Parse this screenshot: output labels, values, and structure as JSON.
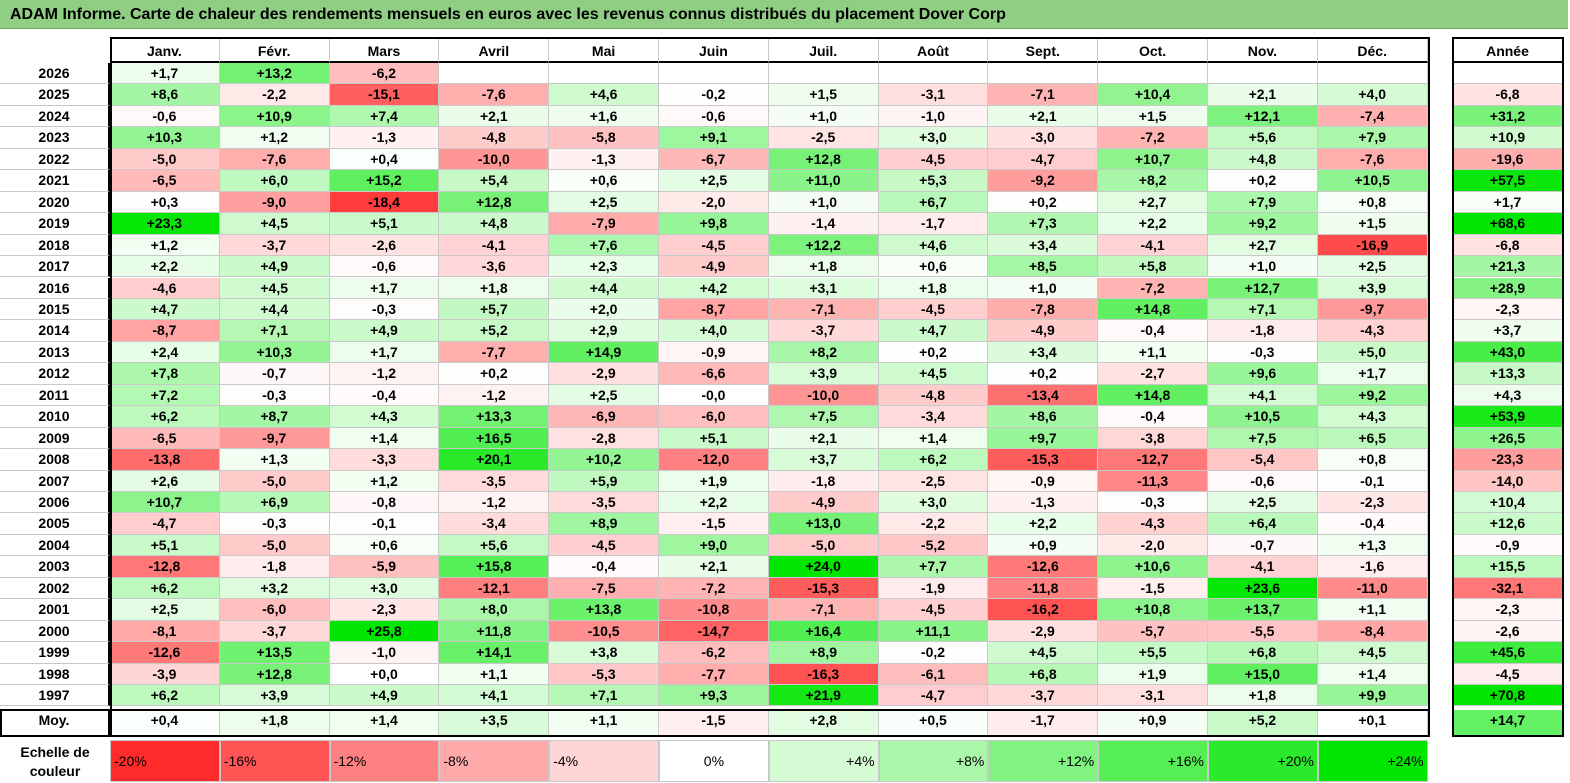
{
  "title": "ADAM Informe. Carte de chaleur des rendements mensuels en euros avec les revenus connus distribués du placement Dover Corp",
  "chart_data": {
    "type": "heatmap",
    "title": "ADAM Informe. Carte de chaleur des rendements mensuels en euros avec les revenus connus distribués du placement Dover Corp",
    "columns": [
      "Janv.",
      "Févr.",
      "Mars",
      "Avril",
      "Mai",
      "Juin",
      "Juil.",
      "Août",
      "Sept.",
      "Oct.",
      "Nov.",
      "Déc."
    ],
    "year_label": "Année",
    "avg_label": "Moy.",
    "rows": [
      {
        "year": "2026",
        "values": [
          "+1,7",
          "+13,2",
          "-6,2",
          "",
          "",
          "",
          "",
          "",
          "",
          "",
          "",
          ""
        ],
        "annual": ""
      },
      {
        "year": "2025",
        "values": [
          "+8,6",
          "-2,2",
          "-15,1",
          "-7,6",
          "+4,6",
          "-0,2",
          "+1,5",
          "-3,1",
          "-7,1",
          "+10,4",
          "+2,1",
          "+4,0"
        ],
        "annual": "-6,8"
      },
      {
        "year": "2024",
        "values": [
          "-0,6",
          "+10,9",
          "+7,4",
          "+2,1",
          "+1,6",
          "-0,6",
          "+1,0",
          "-1,0",
          "+2,1",
          "+1,5",
          "+12,1",
          "-7,4"
        ],
        "annual": "+31,2"
      },
      {
        "year": "2023",
        "values": [
          "+10,3",
          "+1,2",
          "-1,3",
          "-4,8",
          "-5,8",
          "+9,1",
          "-2,5",
          "+3,0",
          "-3,0",
          "-7,2",
          "+5,6",
          "+7,9"
        ],
        "annual": "+10,9"
      },
      {
        "year": "2022",
        "values": [
          "-5,0",
          "-7,6",
          "+0,4",
          "-10,0",
          "-1,3",
          "-6,7",
          "+12,8",
          "-4,5",
          "-4,7",
          "+10,7",
          "+4,8",
          "-7,6"
        ],
        "annual": "-19,6"
      },
      {
        "year": "2021",
        "values": [
          "-6,5",
          "+6,0",
          "+15,2",
          "+5,4",
          "+0,6",
          "+2,5",
          "+11,0",
          "+5,3",
          "-9,2",
          "+8,2",
          "+0,2",
          "+10,5"
        ],
        "annual": "+57,5"
      },
      {
        "year": "2020",
        "values": [
          "+0,3",
          "-9,0",
          "-18,4",
          "+12,8",
          "+2,5",
          "-2,0",
          "+1,0",
          "+6,7",
          "+0,2",
          "+2,7",
          "+7,9",
          "+0,8"
        ],
        "annual": "+1,7"
      },
      {
        "year": "2019",
        "values": [
          "+23,3",
          "+4,5",
          "+5,1",
          "+4,8",
          "-7,9",
          "+9,8",
          "-1,4",
          "-1,7",
          "+7,3",
          "+2,2",
          "+9,2",
          "+1,5"
        ],
        "annual": "+68,6"
      },
      {
        "year": "2018",
        "values": [
          "+1,2",
          "-3,7",
          "-2,6",
          "-4,1",
          "+7,6",
          "-4,5",
          "+12,2",
          "+4,6",
          "+3,4",
          "-4,1",
          "+2,7",
          "-16,9"
        ],
        "annual": "-6,8"
      },
      {
        "year": "2017",
        "values": [
          "+2,2",
          "+4,9",
          "-0,6",
          "-3,6",
          "+2,3",
          "-4,9",
          "+1,8",
          "+0,6",
          "+8,5",
          "+5,8",
          "+1,0",
          "+2,5"
        ],
        "annual": "+21,3"
      },
      {
        "year": "2016",
        "values": [
          "-4,6",
          "+4,5",
          "+1,7",
          "+1,8",
          "+4,4",
          "+4,2",
          "+3,1",
          "+1,8",
          "+1,0",
          "-7,2",
          "+12,7",
          "+3,9"
        ],
        "annual": "+28,9"
      },
      {
        "year": "2015",
        "values": [
          "+4,7",
          "+4,4",
          "-0,3",
          "+5,7",
          "+2,0",
          "-8,7",
          "-7,1",
          "-4,5",
          "-7,8",
          "+14,8",
          "+7,1",
          "-9,7"
        ],
        "annual": "-2,3"
      },
      {
        "year": "2014",
        "values": [
          "-8,7",
          "+7,1",
          "+4,9",
          "+5,2",
          "+2,9",
          "+4,0",
          "-3,7",
          "+4,7",
          "-4,9",
          "-0,4",
          "-1,8",
          "-4,3"
        ],
        "annual": "+3,7"
      },
      {
        "year": "2013",
        "values": [
          "+2,4",
          "+10,3",
          "+1,7",
          "-7,7",
          "+14,9",
          "-0,9",
          "+8,2",
          "+0,2",
          "+3,4",
          "+1,1",
          "-0,3",
          "+5,0"
        ],
        "annual": "+43,0"
      },
      {
        "year": "2012",
        "values": [
          "+7,8",
          "-0,7",
          "-1,2",
          "+0,2",
          "-2,9",
          "-6,6",
          "+3,9",
          "+4,5",
          "+0,2",
          "-2,7",
          "+9,6",
          "+1,7"
        ],
        "annual": "+13,3"
      },
      {
        "year": "2011",
        "values": [
          "+7,2",
          "-0,3",
          "-0,4",
          "-1,2",
          "+2,5",
          "-0,0",
          "-10,0",
          "-4,8",
          "-13,4",
          "+14,8",
          "+4,1",
          "+9,2"
        ],
        "annual": "+4,3"
      },
      {
        "year": "2010",
        "values": [
          "+6,2",
          "+8,7",
          "+4,3",
          "+13,3",
          "-6,9",
          "-6,0",
          "+7,5",
          "-3,4",
          "+8,6",
          "-0,4",
          "+10,5",
          "+4,3"
        ],
        "annual": "+53,9"
      },
      {
        "year": "2009",
        "values": [
          "-6,5",
          "-9,7",
          "+1,4",
          "+16,5",
          "-2,8",
          "+5,1",
          "+2,1",
          "+1,4",
          "+9,7",
          "-3,8",
          "+7,5",
          "+6,5"
        ],
        "annual": "+26,5"
      },
      {
        "year": "2008",
        "values": [
          "-13,8",
          "+1,3",
          "-3,3",
          "+20,1",
          "+10,2",
          "-12,0",
          "+3,7",
          "+6,2",
          "-15,3",
          "-12,7",
          "-5,4",
          "+0,8"
        ],
        "annual": "-23,3"
      },
      {
        "year": "2007",
        "values": [
          "+2,6",
          "-5,0",
          "+1,2",
          "-3,5",
          "+5,9",
          "+1,9",
          "-1,8",
          "-2,5",
          "-0,9",
          "-11,3",
          "-0,6",
          "-0,1"
        ],
        "annual": "-14,0"
      },
      {
        "year": "2006",
        "values": [
          "+10,7",
          "+6,9",
          "-0,8",
          "-1,2",
          "-3,5",
          "+2,2",
          "-4,9",
          "+3,0",
          "-1,3",
          "-0,3",
          "+2,5",
          "-2,3"
        ],
        "annual": "+10,4"
      },
      {
        "year": "2005",
        "values": [
          "-4,7",
          "-0,3",
          "-0,1",
          "-3,4",
          "+8,9",
          "-1,5",
          "+13,0",
          "-2,2",
          "+2,2",
          "-4,3",
          "+6,4",
          "-0,4"
        ],
        "annual": "+12,6"
      },
      {
        "year": "2004",
        "values": [
          "+5,1",
          "-5,0",
          "+0,6",
          "+5,6",
          "-4,5",
          "+9,0",
          "-5,0",
          "-5,2",
          "+0,9",
          "-2,0",
          "-0,7",
          "+1,3"
        ],
        "annual": "-0,9"
      },
      {
        "year": "2003",
        "values": [
          "-12,8",
          "-1,8",
          "-5,9",
          "+15,8",
          "-0,4",
          "+2,1",
          "+24,0",
          "+7,7",
          "-12,6",
          "+10,6",
          "-4,1",
          "-1,6"
        ],
        "annual": "+15,5"
      },
      {
        "year": "2002",
        "values": [
          "+6,2",
          "+3,2",
          "+3,0",
          "-12,1",
          "-7,5",
          "-7,2",
          "-15,3",
          "-1,9",
          "-11,8",
          "-1,5",
          "+23,6",
          "-11,0"
        ],
        "annual": "-32,1"
      },
      {
        "year": "2001",
        "values": [
          "+2,5",
          "-6,0",
          "-2,3",
          "+8,0",
          "+13,8",
          "-10,8",
          "-7,1",
          "-4,5",
          "-16,2",
          "+10,8",
          "+13,7",
          "+1,1"
        ],
        "annual": "-2,3"
      },
      {
        "year": "2000",
        "values": [
          "-8,1",
          "-3,7",
          "+25,8",
          "+11,8",
          "-10,5",
          "-14,7",
          "+16,4",
          "+11,1",
          "-2,9",
          "-5,7",
          "-5,5",
          "-8,4"
        ],
        "annual": "-2,6"
      },
      {
        "year": "1999",
        "values": [
          "-12,6",
          "+13,5",
          "-1,0",
          "+14,1",
          "+3,8",
          "-6,2",
          "+8,9",
          "-0,2",
          "+4,5",
          "+5,5",
          "+6,8",
          "+4,5"
        ],
        "annual": "+45,6"
      },
      {
        "year": "1998",
        "values": [
          "-3,9",
          "+12,8",
          "+0,0",
          "+1,1",
          "-5,3",
          "-7,7",
          "-16,3",
          "-6,1",
          "+6,8",
          "+1,9",
          "+15,0",
          "+1,4"
        ],
        "annual": "-4,5"
      },
      {
        "year": "1997",
        "values": [
          "+6,2",
          "+3,9",
          "+4,9",
          "+4,1",
          "+7,1",
          "+9,3",
          "+21,9",
          "-4,7",
          "-3,7",
          "-3,1",
          "+1,8",
          "+9,9"
        ],
        "annual": "+70,8"
      }
    ],
    "average": {
      "values": [
        "+0,4",
        "+1,8",
        "+1,4",
        "+3,5",
        "+1,1",
        "-1,5",
        "+2,8",
        "+0,5",
        "-1,7",
        "+0,9",
        "+5,2",
        "+0,1"
      ],
      "annual": "+14,7"
    },
    "color_scale": {
      "label_line1": "Echelle de",
      "label_line2": "couleur",
      "steps": [
        "-20%",
        "-16%",
        "-12%",
        "-8%",
        "-4%",
        "0%",
        "+4%",
        "+8%",
        "+12%",
        "+16%",
        "+20%",
        "+24%"
      ],
      "step_values": [
        -20,
        -16,
        -12,
        -8,
        -4,
        0,
        4,
        8,
        12,
        16,
        20,
        24
      ]
    },
    "colors": {
      "negative": "#ff0000",
      "zero": "#ffffff",
      "positive": "#00e600",
      "title_bg": "#8fce83"
    }
  }
}
